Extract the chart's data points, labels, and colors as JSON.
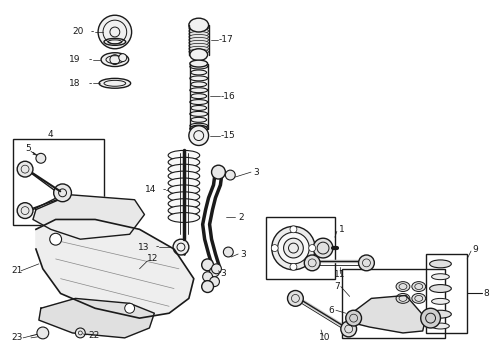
{
  "bg_color": "#ffffff",
  "line_color": "#1a1a1a",
  "figsize": [
    4.9,
    3.6
  ],
  "dpi": 100,
  "label_fontsize": 6.5,
  "label_fontsize_sm": 5.5
}
